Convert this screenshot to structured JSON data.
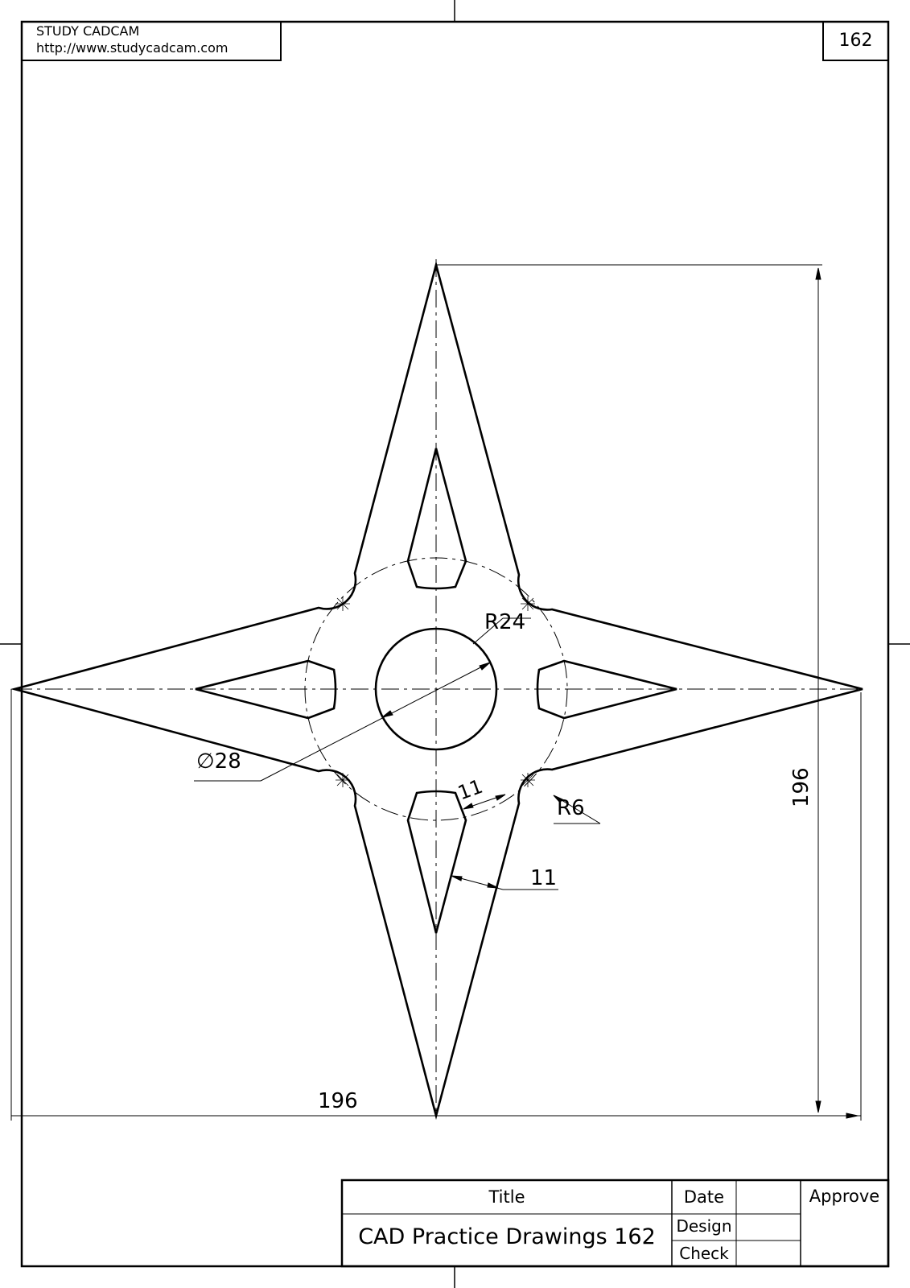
{
  "header": {
    "company": "STUDY CADCAM",
    "url": "http://www.studycadcam.com",
    "sheet_number": "162"
  },
  "drawing": {
    "dimensions": {
      "diameter": "∅28",
      "radius_outer": "R24",
      "radius_small": "R6",
      "width_inner": "11",
      "width_arm": "11",
      "overall_width": "196",
      "overall_height": "196"
    }
  },
  "title_block": {
    "title_label": "Title",
    "title_value": "CAD Practice Drawings 162",
    "date_label": "Date",
    "design_label": "Design",
    "check_label": "Check",
    "approve_label": "Approve"
  }
}
